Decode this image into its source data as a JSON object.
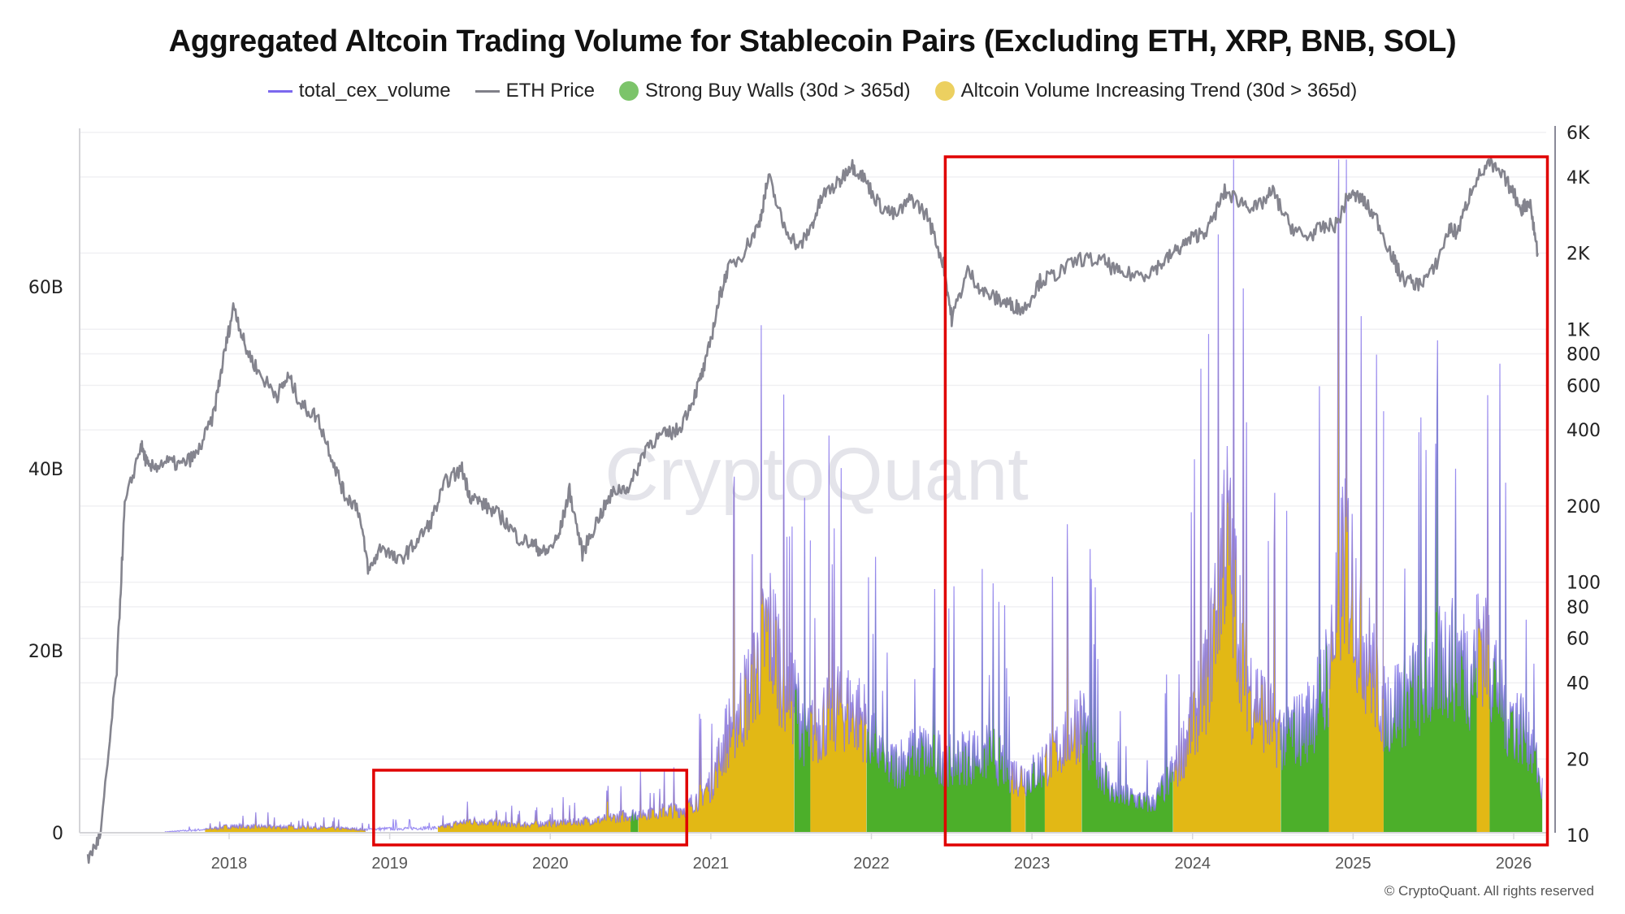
{
  "chart_data": {
    "type": "area",
    "title": "Aggregated Altcoin Trading Volume for Stablecoin Pairs (Excluding ETH, XRP, BNB, SOL)",
    "legend": [
      {
        "label": "total_cex_volume",
        "kind": "line",
        "color": "#7b68ee"
      },
      {
        "label": "ETH Price",
        "kind": "line",
        "color": "#808088"
      },
      {
        "label": "Strong Buy Walls (30d > 365d)",
        "kind": "dot",
        "color": "#4caf3a"
      },
      {
        "label": "Altcoin Volume Increasing Trend (30d > 365d)",
        "kind": "dot",
        "color": "#e8c33a"
      }
    ],
    "legend_position": "top",
    "x_ticks": [
      "2018",
      "2019",
      "2020",
      "2021",
      "2022",
      "2023",
      "2024",
      "2025",
      "2026"
    ],
    "x_range": [
      2017.1,
      2026.25
    ],
    "y_left": {
      "ticks": [
        {
          "v": 0,
          "label": "0"
        },
        {
          "v": 20,
          "label": "20B"
        },
        {
          "v": 40,
          "label": "40B"
        },
        {
          "v": 60,
          "label": "60B"
        }
      ],
      "range": [
        0,
        78
      ],
      "unit": "B"
    },
    "y_right": {
      "scale": "log",
      "range": [
        10,
        6000
      ],
      "ticks": [
        {
          "v": 6000,
          "label": "6K"
        },
        {
          "v": 4000,
          "label": "4K"
        },
        {
          "v": 2000,
          "label": "2K"
        },
        {
          "v": 1000,
          "label": "1K"
        },
        {
          "v": 800,
          "label": "800"
        },
        {
          "v": 600,
          "label": "600"
        },
        {
          "v": 400,
          "label": "400"
        },
        {
          "v": 200,
          "label": "200"
        },
        {
          "v": 100,
          "label": "100"
        },
        {
          "v": 80,
          "label": "80"
        },
        {
          "v": 60,
          "label": "60"
        },
        {
          "v": 40,
          "label": "40"
        },
        {
          "v": 20,
          "label": "20"
        },
        {
          "v": 10,
          "label": "10"
        }
      ]
    },
    "grid": true,
    "eth_price": {
      "x": [
        2017.12,
        2017.2,
        2017.3,
        2017.35,
        2017.45,
        2017.5,
        2017.6,
        2017.7,
        2017.8,
        2017.9,
        2017.97,
        2018.03,
        2018.1,
        2018.2,
        2018.3,
        2018.37,
        2018.45,
        2018.55,
        2018.65,
        2018.72,
        2018.8,
        2018.87,
        2018.95,
        2019.05,
        2019.15,
        2019.25,
        2019.35,
        2019.45,
        2019.5,
        2019.6,
        2019.7,
        2019.8,
        2019.9,
        2019.97,
        2020.05,
        2020.12,
        2020.2,
        2020.3,
        2020.4,
        2020.5,
        2020.6,
        2020.7,
        2020.8,
        2020.9,
        2020.97,
        2021.05,
        2021.1,
        2021.2,
        2021.3,
        2021.36,
        2021.45,
        2021.55,
        2021.62,
        2021.7,
        2021.8,
        2021.87,
        2021.95,
        2022.05,
        2022.15,
        2022.25,
        2022.35,
        2022.45,
        2022.5,
        2022.6,
        2022.7,
        2022.8,
        2022.87,
        2022.95,
        2023.05,
        2023.15,
        2023.3,
        2023.45,
        2023.55,
        2023.7,
        2023.8,
        2023.9,
        2024.0,
        2024.1,
        2024.2,
        2024.3,
        2024.4,
        2024.5,
        2024.6,
        2024.7,
        2024.8,
        2024.9,
        2024.97,
        2025.05,
        2025.15,
        2025.25,
        2025.3,
        2025.4,
        2025.5,
        2025.6,
        2025.65,
        2025.75,
        2025.85,
        2025.95,
        2026.05,
        2026.1,
        2026.15
      ],
      "y": [
        8,
        10,
        45,
        200,
        350,
        280,
        300,
        290,
        320,
        450,
        800,
        1250,
        850,
        650,
        550,
        650,
        500,
        450,
        300,
        220,
        200,
        110,
        140,
        120,
        140,
        170,
        250,
        280,
        220,
        200,
        180,
        150,
        140,
        130,
        150,
        230,
        130,
        180,
        230,
        240,
        350,
        380,
        400,
        550,
        740,
        1300,
        1700,
        2000,
        2600,
        4000,
        2600,
        2100,
        2500,
        3400,
        3800,
        4500,
        4000,
        3100,
        2800,
        3300,
        2800,
        1800,
        1100,
        1700,
        1400,
        1300,
        1250,
        1200,
        1550,
        1650,
        1900,
        1850,
        1650,
        1650,
        1800,
        2050,
        2300,
        2500,
        3500,
        3200,
        3000,
        3500,
        2600,
        2300,
        2500,
        2600,
        3400,
        3300,
        2700,
        1900,
        1600,
        1500,
        1700,
        2500,
        2400,
        3800,
        4500,
        3900,
        3000,
        3200,
        2000
      ]
    },
    "volume_regimes": [
      {
        "from": 2017.6,
        "to": 2017.85,
        "regime": "none"
      },
      {
        "from": 2017.85,
        "to": 2018.85,
        "regime": "trend"
      },
      {
        "from": 2018.85,
        "to": 2019.3,
        "regime": "none"
      },
      {
        "from": 2019.3,
        "to": 2020.5,
        "regime": "trend"
      },
      {
        "from": 2020.5,
        "to": 2020.55,
        "regime": "buywalls"
      },
      {
        "from": 2020.55,
        "to": 2021.52,
        "regime": "trend"
      },
      {
        "from": 2021.52,
        "to": 2021.62,
        "regime": "buywalls"
      },
      {
        "from": 2021.62,
        "to": 2021.97,
        "regime": "trend"
      },
      {
        "from": 2021.97,
        "to": 2022.87,
        "regime": "buywalls"
      },
      {
        "from": 2022.87,
        "to": 2022.96,
        "regime": "trend"
      },
      {
        "from": 2022.96,
        "to": 2023.08,
        "regime": "buywalls"
      },
      {
        "from": 2023.08,
        "to": 2023.31,
        "regime": "trend"
      },
      {
        "from": 2023.31,
        "to": 2023.88,
        "regime": "buywalls"
      },
      {
        "from": 2023.88,
        "to": 2024.55,
        "regime": "trend"
      },
      {
        "from": 2024.55,
        "to": 2024.85,
        "regime": "buywalls"
      },
      {
        "from": 2024.85,
        "to": 2025.19,
        "regime": "trend"
      },
      {
        "from": 2025.19,
        "to": 2025.77,
        "regime": "buywalls"
      },
      {
        "from": 2025.77,
        "to": 2025.85,
        "regime": "trend"
      },
      {
        "from": 2025.85,
        "to": 2026.18,
        "regime": "buywalls"
      }
    ],
    "volume_envelope_b": {
      "x": [
        2017.6,
        2017.85,
        2018.0,
        2018.5,
        2018.85,
        2019.0,
        2019.3,
        2019.5,
        2019.8,
        2020.0,
        2020.3,
        2020.6,
        2020.85,
        2021.0,
        2021.1,
        2021.25,
        2021.36,
        2021.45,
        2021.6,
        2021.8,
        2021.95,
        2022.1,
        2022.3,
        2022.5,
        2022.75,
        2022.9,
        2023.0,
        2023.15,
        2023.3,
        2023.5,
        2023.75,
        2023.9,
        2024.1,
        2024.2,
        2024.35,
        2024.55,
        2024.7,
        2024.85,
        2024.95,
        2025.05,
        2025.2,
        2025.4,
        2025.6,
        2025.75,
        2025.8,
        2025.95,
        2026.1,
        2026.18
      ],
      "y": [
        0.1,
        0.4,
        0.8,
        0.7,
        0.4,
        0.5,
        0.6,
        1.5,
        1.0,
        1.2,
        1.6,
        2.5,
        3.0,
        6.0,
        12.0,
        18.0,
        25.0,
        20.0,
        12.0,
        16.0,
        14.0,
        8.0,
        10.0,
        9.0,
        10.0,
        7.0,
        7.0,
        10.0,
        14.0,
        5.0,
        3.5,
        8.0,
        20.0,
        38.0,
        18.0,
        12.0,
        13.0,
        20.0,
        35.0,
        25.0,
        15.0,
        18.0,
        22.0,
        20.0,
        25.0,
        15.0,
        12.0,
        5.0
      ]
    },
    "annotations": [
      {
        "type": "box",
        "color": "#e00000",
        "from": 2018.9,
        "to": 2020.85,
        "y_range_b": [
          -1,
          7
        ]
      },
      {
        "type": "box",
        "color": "#e00000",
        "from": 2022.46,
        "to": 2026.21,
        "y_range_b": [
          -1,
          75
        ]
      }
    ],
    "watermark": "CryptoQuant",
    "copyright": "© CryptoQuant. All rights reserved"
  }
}
